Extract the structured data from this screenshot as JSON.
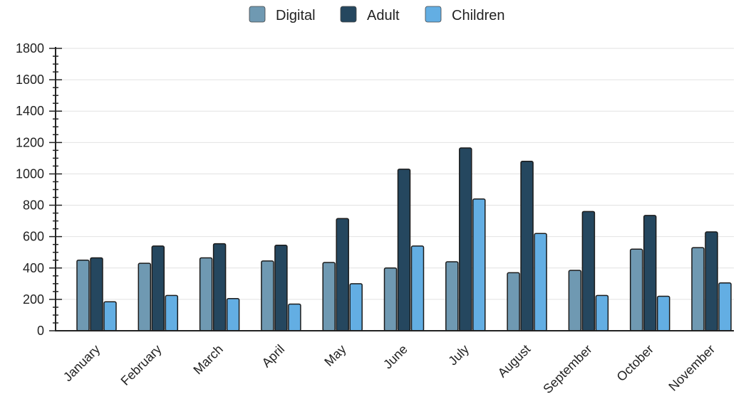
{
  "chart_data": {
    "type": "bar",
    "title": "",
    "xlabel": "",
    "ylabel": "",
    "ylim": [
      0,
      1800
    ],
    "yticks": [
      0,
      200,
      400,
      600,
      800,
      1000,
      1200,
      1400,
      1600,
      1800
    ],
    "grid": true,
    "legend_position": "top-center",
    "categories": [
      "January",
      "February",
      "March",
      "April",
      "May",
      "June",
      "July",
      "August",
      "September",
      "October",
      "November"
    ],
    "series": [
      {
        "name": "Digital",
        "color": "#6f99b2",
        "values": [
          450,
          430,
          465,
          445,
          435,
          400,
          440,
          370,
          385,
          520,
          530
        ]
      },
      {
        "name": "Adult",
        "color": "#25475f",
        "values": [
          465,
          540,
          555,
          545,
          715,
          1030,
          1165,
          1080,
          760,
          735,
          630
        ]
      },
      {
        "name": "Children",
        "color": "#63aee3",
        "values": [
          185,
          225,
          205,
          170,
          300,
          540,
          840,
          620,
          225,
          220,
          305
        ]
      }
    ]
  }
}
